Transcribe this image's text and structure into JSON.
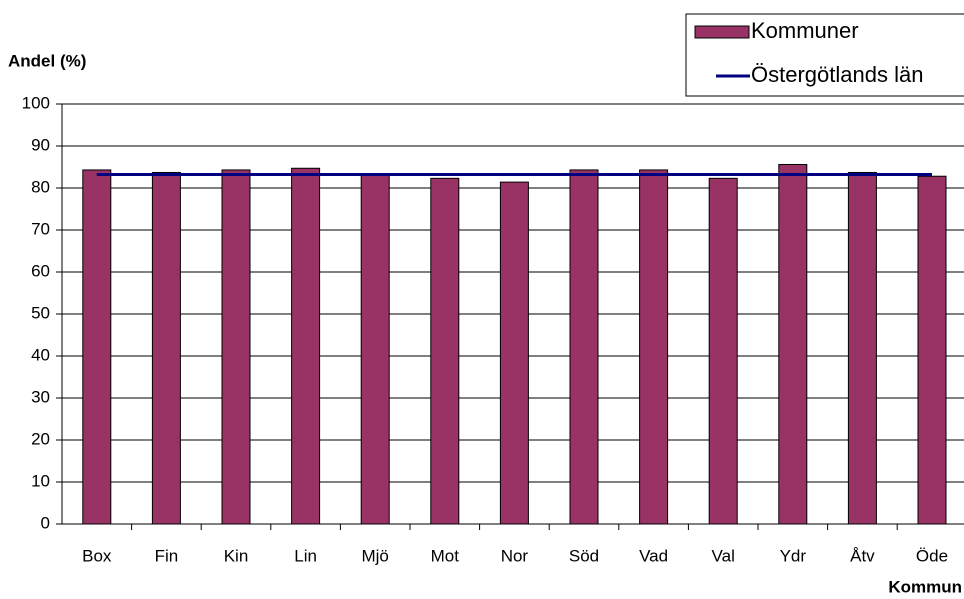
{
  "chart_data": {
    "type": "bar",
    "y_label": "Andel (%)",
    "x_label": "Kommun",
    "categories": [
      "Box",
      "Fin",
      "Kin",
      "Lin",
      "Mjö",
      "Mot",
      "Nor",
      "Söd",
      "Vad",
      "Val",
      "Ydr",
      "Åtv",
      "Öde"
    ],
    "series": [
      {
        "name": "Kommuner",
        "type": "bar",
        "color": "#993366",
        "values": [
          84.3,
          83.7,
          84.3,
          84.7,
          83.3,
          82.3,
          81.4,
          84.3,
          84.3,
          82.3,
          85.6,
          83.7,
          82.8
        ]
      },
      {
        "name": "Östergötlands län",
        "type": "line",
        "color": "#000080",
        "values": [
          83.2,
          83.2,
          83.2,
          83.2,
          83.2,
          83.2,
          83.2,
          83.2,
          83.2,
          83.2,
          83.2,
          83.2,
          83.2
        ]
      }
    ],
    "ylim": [
      0,
      100
    ],
    "yticks": [
      0,
      10,
      20,
      30,
      40,
      50,
      60,
      70,
      80,
      90,
      100
    ],
    "grid": true,
    "legend": "top-right"
  }
}
